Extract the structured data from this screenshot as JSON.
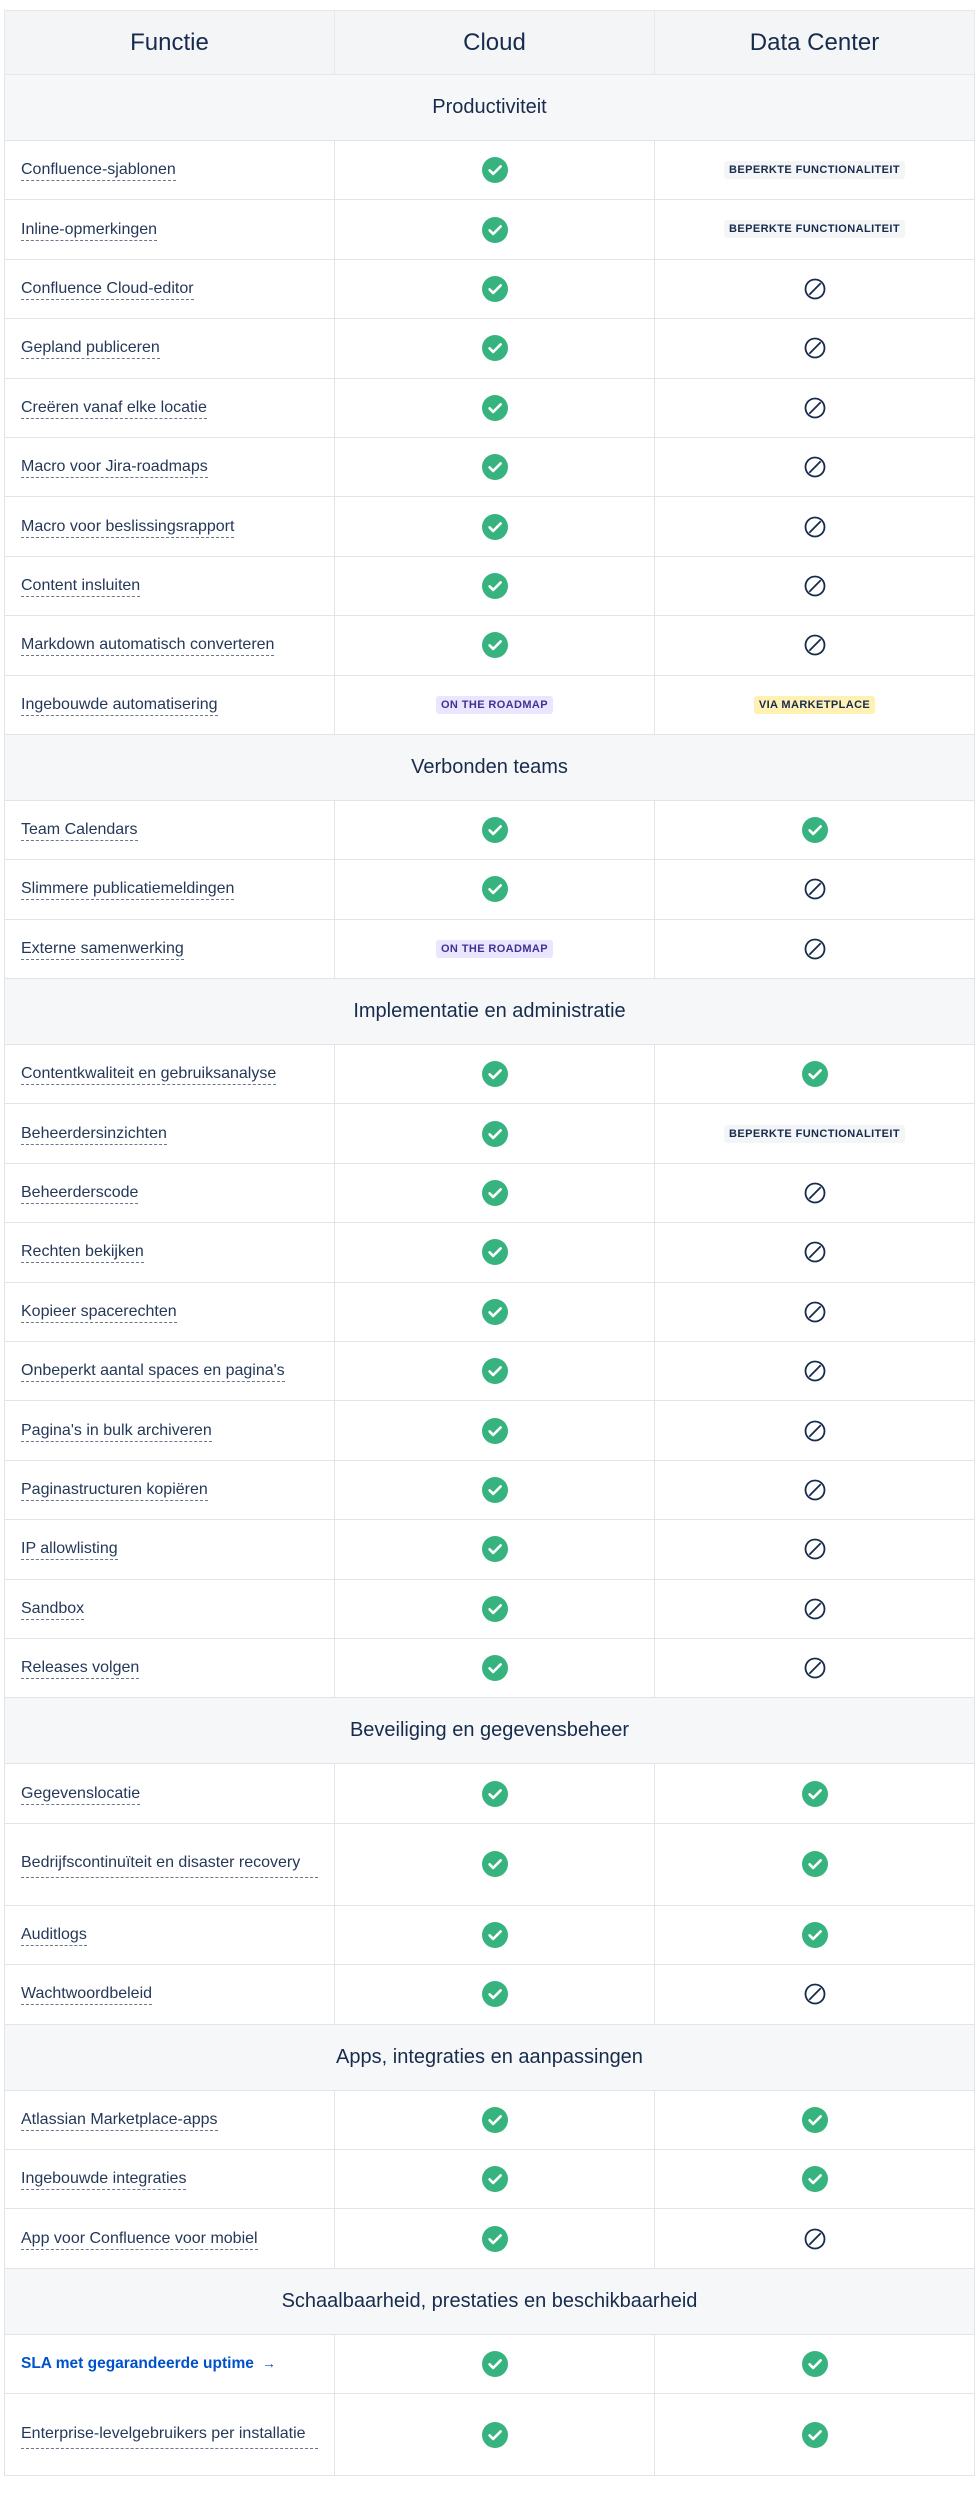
{
  "headers": [
    "Functie",
    "Cloud",
    "Data Center"
  ],
  "statuses": {
    "limited": "BEPERKTE FUNCTIONALITEIT",
    "roadmap": "ON THE ROADMAP",
    "marketplace": "VIA MARKETPLACE"
  },
  "colors": {
    "check": "#36b37e",
    "none_icon": "#172b4d",
    "link": "#0052cc",
    "section_bg": "#f6f7f9",
    "roadmap_bg": "#eae6ff",
    "marketplace_bg": "#fff0b3"
  },
  "sections": [
    {
      "title": "Productiviteit",
      "rows": [
        {
          "feature": "Confluence-sjablonen",
          "cloud": "check",
          "dc": "limited"
        },
        {
          "feature": "Inline-opmerkingen",
          "cloud": "check",
          "dc": "limited"
        },
        {
          "feature": "Confluence Cloud-editor",
          "cloud": "check",
          "dc": "none"
        },
        {
          "feature": "Gepland publiceren",
          "cloud": "check",
          "dc": "none"
        },
        {
          "feature": "Creëren vanaf elke locatie",
          "cloud": "check",
          "dc": "none"
        },
        {
          "feature": "Macro voor Jira-roadmaps",
          "cloud": "check",
          "dc": "none"
        },
        {
          "feature": "Macro voor beslissingsrapport",
          "cloud": "check",
          "dc": "none"
        },
        {
          "feature": "Content insluiten",
          "cloud": "check",
          "dc": "none"
        },
        {
          "feature": "Markdown automatisch converteren",
          "cloud": "check",
          "dc": "none"
        },
        {
          "feature": "Ingebouwde automatisering",
          "cloud": "roadmap",
          "dc": "marketplace"
        }
      ]
    },
    {
      "title": "Verbonden teams",
      "rows": [
        {
          "feature": "Team Calendars",
          "cloud": "check",
          "dc": "check"
        },
        {
          "feature": "Slimmere publicatiemeldingen",
          "cloud": "check",
          "dc": "none"
        },
        {
          "feature": "Externe samenwerking",
          "cloud": "roadmap",
          "dc": "none"
        }
      ]
    },
    {
      "title": "Implementatie en administratie",
      "rows": [
        {
          "feature": "Contentkwaliteit en gebruiksanalyse",
          "cloud": "check",
          "dc": "check"
        },
        {
          "feature": "Beheerdersinzichten",
          "cloud": "check",
          "dc": "limited"
        },
        {
          "feature": "Beheerderscode",
          "cloud": "check",
          "dc": "none"
        },
        {
          "feature": "Rechten bekijken",
          "cloud": "check",
          "dc": "none"
        },
        {
          "feature": "Kopieer spacerechten",
          "cloud": "check",
          "dc": "none"
        },
        {
          "feature": "Onbeperkt aantal spaces en pagina's",
          "cloud": "check",
          "dc": "none"
        },
        {
          "feature": "Pagina's in bulk archiveren",
          "cloud": "check",
          "dc": "none"
        },
        {
          "feature": "Paginastructuren kopiëren",
          "cloud": "check",
          "dc": "none"
        },
        {
          "feature": "IP allowlisting",
          "cloud": "check",
          "dc": "none"
        },
        {
          "feature": "Sandbox",
          "cloud": "check",
          "dc": "none"
        },
        {
          "feature": "Releases volgen",
          "cloud": "check",
          "dc": "none"
        }
      ]
    },
    {
      "title": "Beveiliging en gegevensbeheer",
      "rows": [
        {
          "feature": "Gegevenslocatie",
          "cloud": "check",
          "dc": "check"
        },
        {
          "feature": "Bedrijfscontinuïteit en disaster recovery",
          "cloud": "check",
          "dc": "check",
          "tall": true
        },
        {
          "feature": "Auditlogs",
          "cloud": "check",
          "dc": "check"
        },
        {
          "feature": "Wachtwoordbeleid",
          "cloud": "check",
          "dc": "none"
        }
      ]
    },
    {
      "title": "Apps, integraties en aanpassingen",
      "rows": [
        {
          "feature": "Atlassian Marketplace-apps",
          "cloud": "check",
          "dc": "check"
        },
        {
          "feature": "Ingebouwde integraties",
          "cloud": "check",
          "dc": "check"
        },
        {
          "feature": "App voor Confluence voor mobiel",
          "cloud": "check",
          "dc": "none"
        }
      ]
    },
    {
      "title": "Schaalbaarheid, prestaties en beschikbaarheid",
      "rows": [
        {
          "feature": "SLA met gegarandeerde uptime",
          "cloud": "check",
          "dc": "check",
          "link": true,
          "arrow": "→"
        },
        {
          "feature": "Enterprise-levelgebruikers per installatie",
          "cloud": "check",
          "dc": "check",
          "tall": true
        }
      ]
    }
  ]
}
